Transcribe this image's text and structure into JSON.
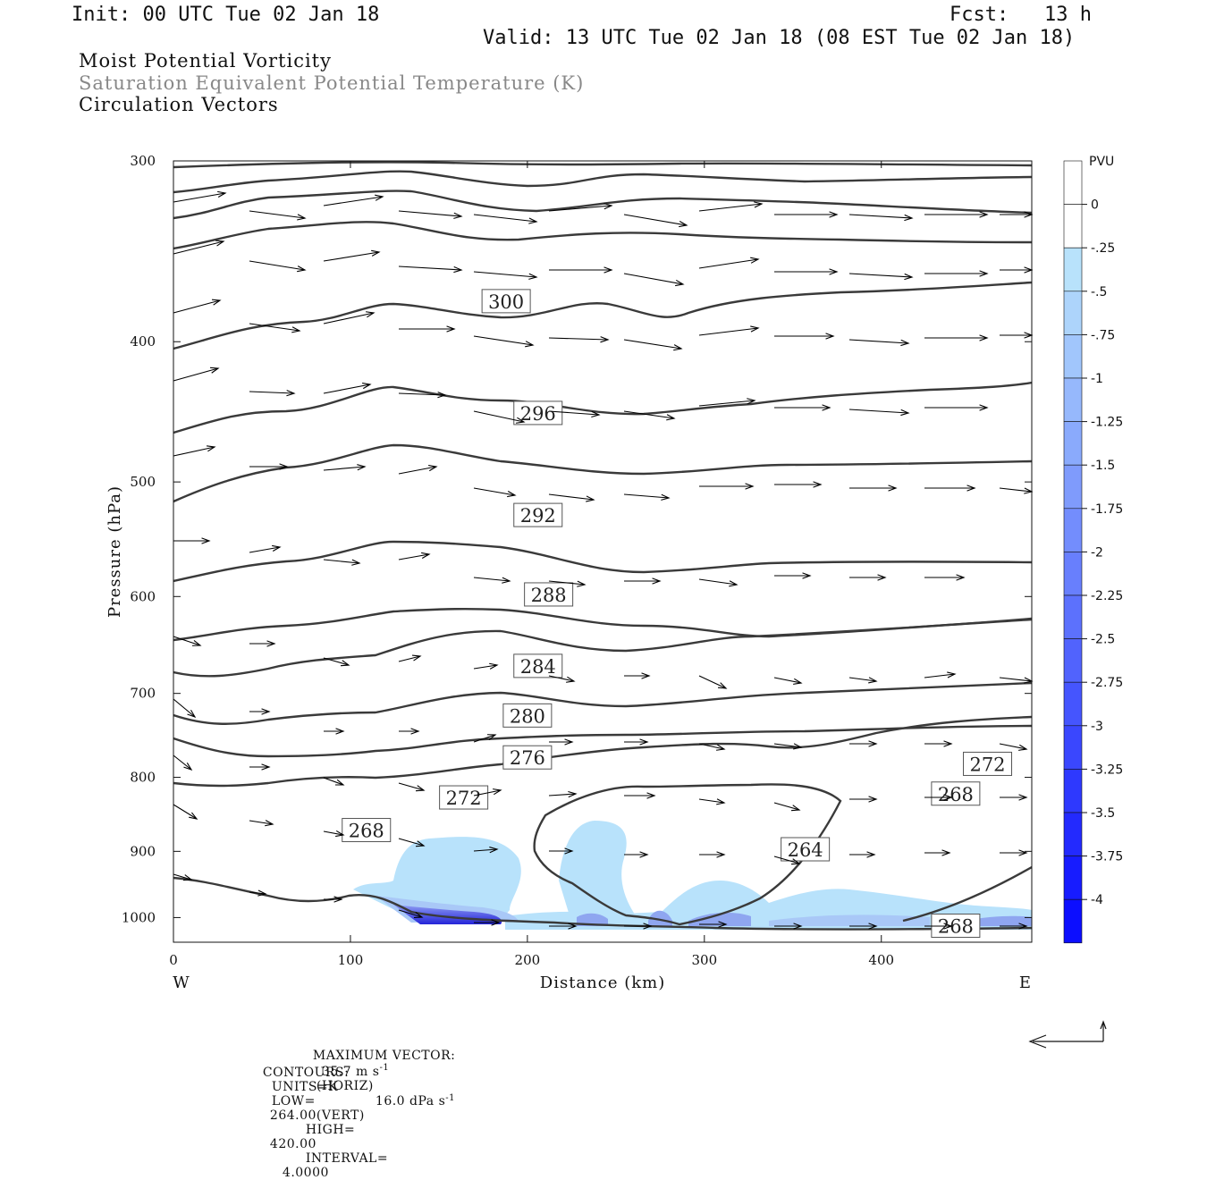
{
  "header": {
    "init": "Init: 00 UTC Tue 02 Jan 18",
    "fcst_label": "Fcst:",
    "fcst_value": "13 h",
    "valid": "Valid: 13 UTC Tue 02 Jan 18 (08 EST Tue 02 Jan 18)"
  },
  "legend_lines": {
    "mpv": "Moist Potential Vorticity",
    "theta_es": "Saturation Equivalent Potential Temperature (K)",
    "vectors": "Circulation Vectors"
  },
  "colors": {
    "theta_es_text": "#888888",
    "contour": "#3a3a3a",
    "pv_light": "#b8e2fb",
    "pv_dark": "#0000ff"
  },
  "chart_data": {
    "type": "cross-section",
    "xlabel": "Distance (km)",
    "ylabel": "Pressure (hPa)",
    "xlim": [
      0,
      485
    ],
    "ylim": [
      300,
      1040
    ],
    "y_scale": "log",
    "x_ticks": [
      "0",
      "100",
      "200",
      "300",
      "400"
    ],
    "x_tick_values": [
      0,
      100,
      200,
      300,
      400
    ],
    "y_ticks": [
      "300",
      "400",
      "500",
      "600",
      "700",
      "800",
      "900",
      "1000"
    ],
    "y_tick_values": [
      300,
      400,
      500,
      600,
      700,
      800,
      900,
      1000
    ],
    "west_label": "W",
    "east_label": "E",
    "contour_labels": [
      {
        "text": "300",
        "x": 188,
        "p": 375
      },
      {
        "text": "296",
        "x": 206,
        "p": 448
      },
      {
        "text": "292",
        "x": 206,
        "p": 527
      },
      {
        "text": "288",
        "x": 212,
        "p": 598
      },
      {
        "text": "284",
        "x": 206,
        "p": 670
      },
      {
        "text": "280",
        "x": 200,
        "p": 725
      },
      {
        "text": "276",
        "x": 200,
        "p": 775
      },
      {
        "text": "272",
        "x": 164,
        "p": 826
      },
      {
        "text": "268",
        "x": 109,
        "p": 870
      },
      {
        "text": "264",
        "x": 357,
        "p": 897
      },
      {
        "text": "272",
        "x": 460,
        "p": 783
      },
      {
        "text": "268",
        "x": 442,
        "p": 821
      },
      {
        "text": "268",
        "x": 442,
        "p": 1013
      }
    ],
    "colorbar": {
      "unit": "PVU",
      "labels": [
        "0",
        "-.25",
        "-.5",
        "-.75",
        "-1",
        "-1.25",
        "-1.5",
        "-1.75",
        "-2",
        "-2.25",
        "-2.5",
        "-2.75",
        "-3",
        "-3.25",
        "-3.5",
        "-3.75",
        "-4"
      ],
      "values": [
        0,
        -0.25,
        -0.5,
        -0.75,
        -1,
        -1.25,
        -1.5,
        -1.75,
        -2,
        -2.25,
        -2.5,
        -2.75,
        -3,
        -3.25,
        -3.5,
        -3.75,
        -4
      ]
    }
  },
  "footer": {
    "max_vector_label": "MAXIMUM VECTOR:",
    "max_vector_horiz": "35.7 m s",
    "horiz_tag": "(HORIZ)",
    "max_vector_vert": "16.0 dPa s",
    "vert_tag": "(VERT)",
    "exp": "-1",
    "contours_label": "CONTOURS:",
    "units": "UNITS=K",
    "low_label": "LOW=",
    "low_value": "264.00",
    "high_label": "HIGH=",
    "high_value": "420.00",
    "interval_label": "INTERVAL=",
    "interval_value": "4.0000"
  }
}
